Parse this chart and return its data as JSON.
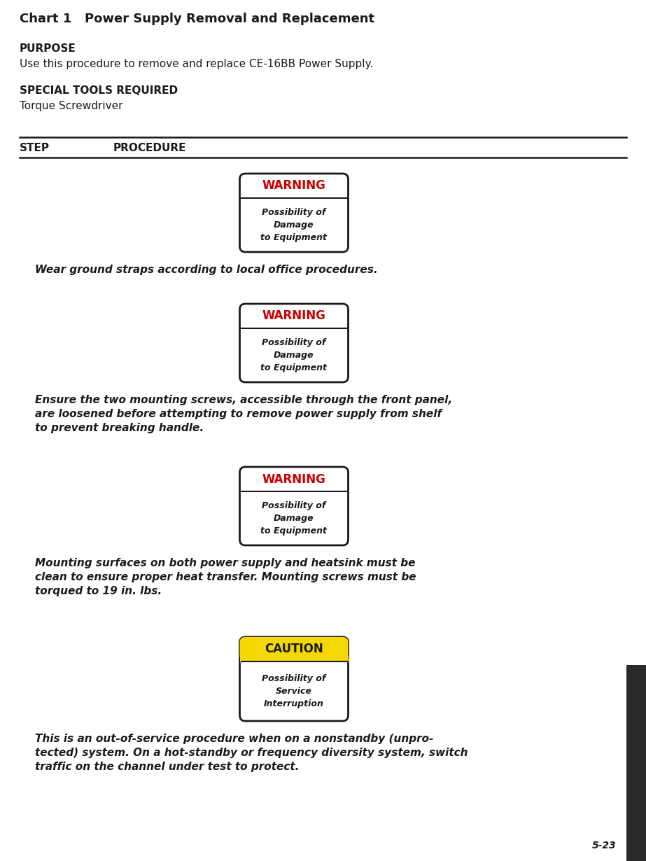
{
  "title": "Chart 1   Power Supply Removal and Replacement",
  "purpose_label": "PURPOSE",
  "purpose_text": "Use this procedure to remove and replace CE-16BB Power Supply.",
  "tools_label": "SPECIAL TOOLS REQUIRED",
  "tools_text": "Torque Screwdriver",
  "step_label": "STEP",
  "procedure_label": "PROCEDURE",
  "warning_boxes": [
    {
      "type": "WARNING",
      "sub": "Possibility of\nDamage\nto Equipment"
    },
    {
      "type": "WARNING",
      "sub": "Possibility of\nDamage\nto Equipment"
    },
    {
      "type": "WARNING",
      "sub": "Possibility of\nDamage\nto Equipment"
    },
    {
      "type": "CAUTION",
      "sub": "Possibility of\nService\nInterruption"
    }
  ],
  "procedures": [
    "Wear ground straps according to local office procedures.",
    "Ensure the two mounting screws, accessible through the front panel,\nare loosened before attempting to remove power supply from shelf\nto prevent breaking handle.",
    "Mounting surfaces on both power supply and heatsink must be\nclean to ensure proper heat transfer. Mounting screws must be\ntorqued to 19 in. lbs.",
    "This is an out-of-service procedure when on a nonstandby (unpro-\ntected) system. On a hot-standby or frequency diversity system, switch\ntraffic on the channel under test to protect."
  ],
  "page_num": "5-23",
  "bg_color": "#ffffff",
  "text_color": "#1a1a1a",
  "warning_header_color": "#cc0000",
  "caution_header_bg": "#f5d800",
  "caution_header_text": "#1a1a1a",
  "box_border_color": "#1a1a1a",
  "right_bar_color": "#2a2a2a",
  "line_color": "#1a1a1a"
}
